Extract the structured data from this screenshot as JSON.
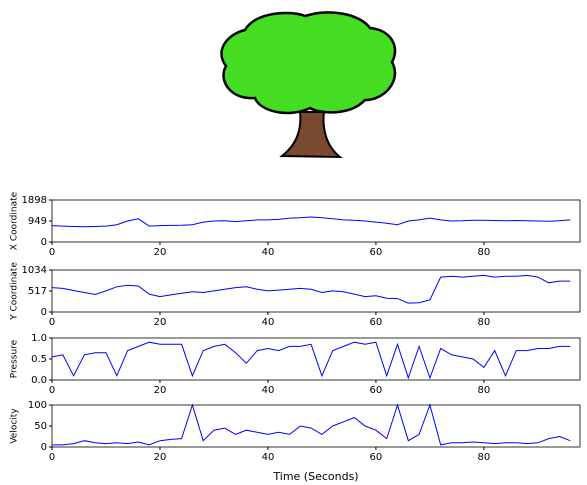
{
  "chart_data": [
    {
      "type": "line",
      "ylabel": "X Coordinate",
      "color": "#0000ff",
      "x": [
        0,
        2,
        4,
        6,
        8,
        10,
        12,
        14,
        16,
        18,
        20,
        22,
        24,
        26,
        28,
        30,
        32,
        34,
        36,
        38,
        40,
        42,
        44,
        46,
        48,
        50,
        52,
        54,
        56,
        58,
        60,
        62,
        64,
        66,
        68,
        70,
        72,
        74,
        76,
        78,
        80,
        82,
        84,
        86,
        88,
        90,
        92,
        94,
        96
      ],
      "values": [
        740,
        720,
        700,
        690,
        700,
        720,
        780,
        950,
        1050,
        720,
        740,
        750,
        760,
        780,
        900,
        950,
        960,
        920,
        960,
        1000,
        1000,
        1020,
        1080,
        1100,
        1130,
        1100,
        1050,
        1000,
        980,
        950,
        900,
        850,
        780,
        950,
        1000,
        1080,
        1000,
        950,
        960,
        980,
        980,
        970,
        960,
        970,
        960,
        950,
        940,
        960,
        1000
      ],
      "xlim": [
        0,
        97.8
      ],
      "xticks": [
        0,
        20,
        40,
        60,
        80
      ],
      "ylim": [
        0,
        1898
      ],
      "yticks": [
        0,
        949,
        1898
      ]
    },
    {
      "type": "line",
      "ylabel": "Y Coordinate",
      "color": "#0000ff",
      "x": [
        0,
        2,
        4,
        6,
        8,
        10,
        12,
        14,
        16,
        18,
        20,
        22,
        24,
        26,
        28,
        30,
        32,
        34,
        36,
        38,
        40,
        42,
        44,
        46,
        48,
        50,
        52,
        54,
        56,
        58,
        60,
        62,
        64,
        66,
        68,
        70,
        72,
        74,
        76,
        78,
        80,
        82,
        84,
        86,
        88,
        90,
        92,
        94,
        96
      ],
      "values": [
        600,
        580,
        530,
        480,
        430,
        520,
        620,
        660,
        640,
        440,
        380,
        420,
        460,
        500,
        480,
        520,
        560,
        600,
        620,
        560,
        520,
        540,
        560,
        580,
        560,
        480,
        520,
        500,
        440,
        380,
        400,
        340,
        330,
        220,
        230,
        300,
        860,
        880,
        860,
        880,
        900,
        860,
        880,
        880,
        900,
        860,
        720,
        760,
        760
      ],
      "xlim": [
        0,
        97.8
      ],
      "xticks": [
        0,
        20,
        40,
        60,
        80
      ],
      "ylim": [
        0,
        1034
      ],
      "yticks": [
        0,
        517,
        1034
      ]
    },
    {
      "type": "line",
      "ylabel": "Pressure",
      "color": "#0000ff",
      "x": [
        0,
        2,
        4,
        6,
        8,
        10,
        12,
        14,
        16,
        18,
        20,
        22,
        24,
        26,
        28,
        30,
        32,
        34,
        36,
        38,
        40,
        42,
        44,
        46,
        48,
        50,
        52,
        54,
        56,
        58,
        60,
        62,
        64,
        66,
        68,
        70,
        72,
        74,
        76,
        78,
        80,
        82,
        84,
        86,
        88,
        90,
        92,
        94,
        96
      ],
      "values": [
        0.55,
        0.6,
        0.1,
        0.6,
        0.65,
        0.65,
        0.1,
        0.7,
        0.8,
        0.9,
        0.85,
        0.85,
        0.85,
        0.1,
        0.7,
        0.8,
        0.85,
        0.65,
        0.4,
        0.7,
        0.75,
        0.7,
        0.8,
        0.8,
        0.85,
        0.1,
        0.7,
        0.8,
        0.9,
        0.85,
        0.9,
        0.1,
        0.85,
        0.05,
        0.8,
        0.05,
        0.75,
        0.6,
        0.55,
        0.5,
        0.3,
        0.7,
        0.1,
        0.7,
        0.7,
        0.75,
        0.75,
        0.8,
        0.8
      ],
      "xlim": [
        0,
        97.8
      ],
      "xticks": [
        0,
        20,
        40,
        60,
        80
      ],
      "ylim": [
        0,
        1
      ],
      "yticks": [
        {
          "value": 0,
          "label": "0.0"
        },
        {
          "value": 0.5,
          "label": "0.5"
        },
        {
          "value": 1,
          "label": "1.0"
        }
      ]
    },
    {
      "type": "line",
      "ylabel": "Velocity",
      "xlabel": "Time (Seconds)",
      "color": "#0000ff",
      "x": [
        0,
        2,
        4,
        6,
        8,
        10,
        12,
        14,
        16,
        18,
        20,
        22,
        24,
        26,
        28,
        30,
        32,
        34,
        36,
        38,
        40,
        42,
        44,
        46,
        48,
        50,
        52,
        54,
        56,
        58,
        60,
        62,
        64,
        66,
        68,
        70,
        72,
        74,
        76,
        78,
        80,
        82,
        84,
        86,
        88,
        90,
        92,
        94,
        96
      ],
      "values": [
        5,
        5,
        8,
        15,
        10,
        8,
        10,
        8,
        12,
        5,
        15,
        18,
        20,
        100,
        15,
        40,
        45,
        30,
        40,
        35,
        30,
        35,
        30,
        50,
        45,
        30,
        50,
        60,
        70,
        50,
        40,
        20,
        100,
        15,
        30,
        100,
        5,
        10,
        10,
        12,
        10,
        8,
        10,
        10,
        8,
        10,
        20,
        25,
        15
      ],
      "xlim": [
        0,
        97.8
      ],
      "xticks": [
        0,
        20,
        40,
        60,
        80
      ],
      "ylim": [
        0,
        100
      ],
      "yticks": [
        0,
        50,
        100
      ]
    }
  ]
}
